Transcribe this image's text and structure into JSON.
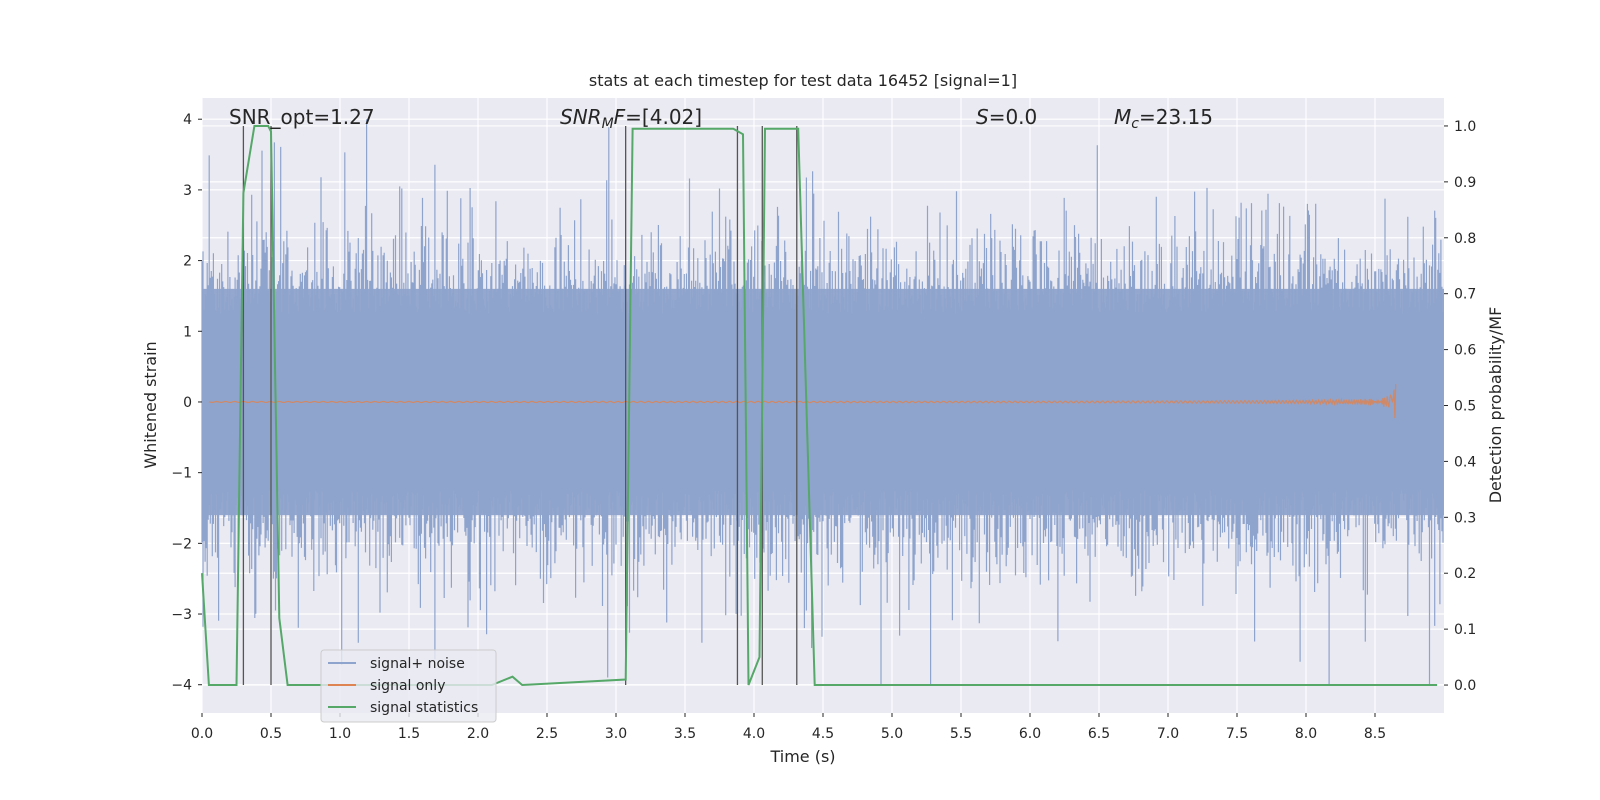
{
  "chart_data": {
    "type": "line",
    "title": "stats at each timestep for test data 16452 [signal=1]",
    "xlabel": "Time (s)",
    "ylabel_left": "Whitened strain",
    "ylabel_right": "Detection probability/MF",
    "xlim": [
      0.0,
      9.0
    ],
    "ylim_left": [
      -4.4,
      4.3
    ],
    "ylim_right": [
      -0.05,
      1.05
    ],
    "x_ticks": [
      0.0,
      0.5,
      1.0,
      1.5,
      2.0,
      2.5,
      3.0,
      3.5,
      4.0,
      4.5,
      5.0,
      5.5,
      6.0,
      6.5,
      7.0,
      7.5,
      8.0,
      8.5
    ],
    "x_tick_labels": [
      "0.0",
      "0.5",
      "1.0",
      "1.5",
      "2.0",
      "2.5",
      "3.0",
      "3.5",
      "4.0",
      "4.5",
      "5.0",
      "5.5",
      "6.0",
      "6.5",
      "7.0",
      "7.5",
      "8.0",
      "8.5"
    ],
    "y_left_ticks": [
      4,
      3,
      2,
      1,
      0,
      -1,
      -2,
      -3,
      -4
    ],
    "y_left_tick_labels": [
      "4",
      "3",
      "2",
      "1",
      "0",
      "−1",
      "−2",
      "−3",
      "−4"
    ],
    "y_right_ticks": [
      1.0,
      0.9,
      0.8,
      0.7,
      0.6,
      0.5,
      0.4,
      0.3,
      0.2,
      0.1,
      0.0
    ],
    "y_right_tick_labels": [
      "1.0",
      "0.9",
      "0.8",
      "0.7",
      "0.6",
      "0.5",
      "0.4",
      "0.3",
      "0.2",
      "0.1",
      "0.0"
    ],
    "annotations": {
      "snr_opt": "SNR_opt=1.27",
      "snr_mf_main": "SNR",
      "snr_mf_sub": "M",
      "snr_mf_rest": "F",
      "snr_mf_value": "=[4.02]",
      "s_var": "S",
      "s_value": "=0.0",
      "mc_var": "M",
      "mc_sub": "c",
      "mc_value": "=23.15"
    },
    "legend": {
      "placement": "lower-left",
      "entries": [
        {
          "label": "signal+ noise",
          "color": "#8fa4cc"
        },
        {
          "label": "signal only",
          "color": "#dd8452"
        },
        {
          "label": "signal statistics",
          "color": "#55a868"
        }
      ]
    },
    "series": [
      {
        "name": "signal statistics",
        "axis": "right",
        "color": "#55a868",
        "x": [
          0.0,
          0.05,
          0.25,
          0.3,
          0.38,
          0.48,
          0.5,
          0.56,
          0.62,
          2.1,
          2.25,
          2.32,
          3.07,
          3.12,
          3.85,
          3.92,
          3.96,
          4.04,
          4.08,
          4.32,
          4.44,
          4.5,
          8.95
        ],
        "y": [
          0.2,
          0.0,
          0.0,
          0.88,
          1.0,
          1.0,
          0.99,
          0.12,
          0.0,
          0.0,
          0.015,
          0.0,
          0.01,
          0.995,
          0.995,
          0.985,
          0.0,
          0.05,
          0.995,
          0.995,
          0.0,
          0.0,
          0.0
        ]
      }
    ],
    "vertical_markers_x": [
      0.3,
      0.5,
      3.07,
      3.88,
      4.06,
      4.31
    ],
    "noise": {
      "name": "signal+ noise",
      "color": "#8fa4cc",
      "typical_envelope": [
        -1.6,
        1.6
      ],
      "max_abs": 4.0
    },
    "signal": {
      "name": "signal only",
      "color": "#dd8452",
      "chirp_end_x": 8.65,
      "chirp_peak_amp": 0.28
    }
  }
}
